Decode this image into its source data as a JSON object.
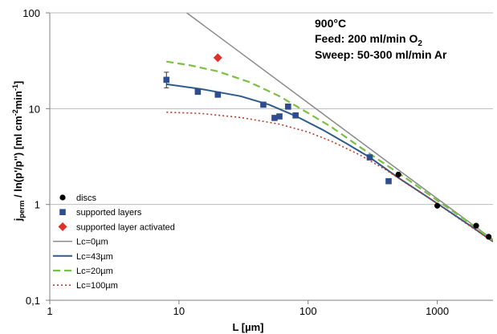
{
  "chart_data": {
    "type": "scatter",
    "title": "",
    "xlabel": "L [µm]",
    "ylabel_main": "j",
    "ylabel_sub": "perm",
    "ylabel_rest": " / ln(p'/p'') [ml cm",
    "ylabel_exp1": "-2",
    "ylabel_mid": "min",
    "ylabel_exp2": "-1",
    "ylabel_end": "]",
    "xscale": "log",
    "yscale": "log",
    "xlim": [
      1,
      2700
    ],
    "ylim": [
      0.1,
      100
    ],
    "x_ticks": [
      {
        "value": 1,
        "label": "1"
      },
      {
        "value": 10,
        "label": "10"
      },
      {
        "value": 100,
        "label": "100"
      },
      {
        "value": 1000,
        "label": "1000"
      }
    ],
    "y_ticks": [
      {
        "value": 0.1,
        "label": "0,1"
      },
      {
        "value": 1,
        "label": "1"
      },
      {
        "value": 10,
        "label": "10"
      },
      {
        "value": 100,
        "label": "100"
      }
    ],
    "grid": "horizontal",
    "annotation": {
      "line1": "900°C",
      "line2_pre": "Feed: 200 ml/min O",
      "line2_sub": "2",
      "line3": "Sweep: 50-300 ml/min Ar"
    },
    "legend_position": "bottom-left",
    "legend": [
      {
        "key": "discs",
        "label": "discs"
      },
      {
        "key": "supported",
        "label": "supported layers"
      },
      {
        "key": "activated",
        "label": "supported layer activated"
      },
      {
        "key": "lc0",
        "label": "Lc=0µm"
      },
      {
        "key": "lc43",
        "label": "Lc=43µm"
      },
      {
        "key": "lc20",
        "label": "Lc=20µm"
      },
      {
        "key": "lc100",
        "label": "Lc=100µm"
      }
    ],
    "series": [
      {
        "key": "discs",
        "kind": "points",
        "marker": "circle",
        "color": "#000000",
        "points": [
          [
            500,
            2.05
          ],
          [
            1000,
            0.97
          ],
          [
            2000,
            0.6
          ],
          [
            2500,
            0.46
          ]
        ]
      },
      {
        "key": "supported",
        "kind": "points",
        "marker": "square",
        "color": "#2e4d8e",
        "points": [
          [
            8,
            20
          ],
          [
            14,
            15
          ],
          [
            20,
            14
          ],
          [
            45,
            11
          ],
          [
            55,
            8
          ],
          [
            60,
            8.3
          ],
          [
            70,
            10.5
          ],
          [
            80,
            8.5
          ],
          [
            300,
            3.1
          ],
          [
            420,
            1.75
          ]
        ],
        "error_bars": [
          {
            "x": 8,
            "low": 16.5,
            "high": 24
          }
        ]
      },
      {
        "key": "activated",
        "kind": "points",
        "marker": "diamond",
        "color": "#e0302a",
        "points": [
          [
            20,
            34
          ]
        ]
      },
      {
        "key": "lc0",
        "kind": "line",
        "color": "#8a8a8a",
        "dash": "solid",
        "points": [
          [
            11.5,
            100
          ],
          [
            100,
            11.5
          ],
          [
            1000,
            1.15
          ],
          [
            2700,
            0.43
          ]
        ]
      },
      {
        "key": "lc43",
        "kind": "line",
        "color": "#2e5c8a",
        "dash": "solid",
        "points": [
          [
            8,
            18
          ],
          [
            15,
            16
          ],
          [
            30,
            13.5
          ],
          [
            50,
            11
          ],
          [
            80,
            8.4
          ],
          [
            130,
            6
          ],
          [
            200,
            4.3
          ],
          [
            300,
            3.1
          ],
          [
            500,
            1.9
          ],
          [
            800,
            1.25
          ],
          [
            1200,
            0.87
          ],
          [
            1800,
            0.6
          ],
          [
            2700,
            0.41
          ]
        ]
      },
      {
        "key": "lc20",
        "kind": "line",
        "color": "#7ac143",
        "dash": "dashed",
        "points": [
          [
            8,
            31
          ],
          [
            12,
            28.5
          ],
          [
            20,
            24.5
          ],
          [
            35,
            19
          ],
          [
            60,
            13.5
          ],
          [
            100,
            9
          ],
          [
            150,
            6.5
          ],
          [
            250,
            4
          ],
          [
            400,
            2.6
          ],
          [
            600,
            1.8
          ],
          [
            1000,
            1.1
          ],
          [
            1600,
            0.71
          ],
          [
            2700,
            0.42
          ]
        ]
      },
      {
        "key": "lc100",
        "kind": "line",
        "color": "#c0392b",
        "dash": "dotted",
        "points": [
          [
            8,
            9.2
          ],
          [
            15,
            8.9
          ],
          [
            30,
            8.1
          ],
          [
            60,
            6.9
          ],
          [
            100,
            5.7
          ],
          [
            150,
            4.6
          ],
          [
            250,
            3.3
          ],
          [
            400,
            2.3
          ],
          [
            600,
            1.6
          ],
          [
            1000,
            1.02
          ],
          [
            1500,
            0.7
          ],
          [
            2700,
            0.41
          ]
        ]
      }
    ]
  }
}
